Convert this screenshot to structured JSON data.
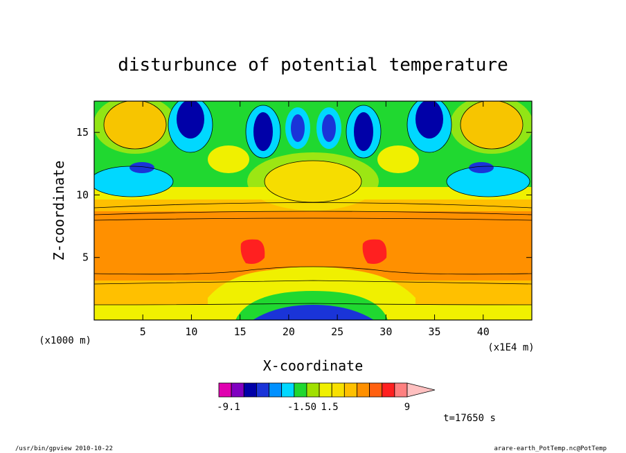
{
  "chart_data": {
    "type": "heatmap",
    "title": "disturbunce of potential temperature",
    "xlabel": "X-coordinate",
    "ylabel": "Z-coordinate",
    "x_unit_label": "(x1E4 m)",
    "y_unit_label": "(x1000 m)",
    "xlim": [
      0,
      45
    ],
    "ylim": [
      0,
      17.5
    ],
    "x_ticks": [
      5,
      10,
      15,
      20,
      25,
      30,
      35,
      40
    ],
    "y_ticks": [
      5,
      10,
      15
    ],
    "x_tick_labels": [
      "5",
      "10",
      "15",
      "20",
      "25",
      "30",
      "35",
      "40"
    ],
    "y_tick_labels": [
      "5",
      "10",
      "15"
    ],
    "colorbar": {
      "colors": [
        "#e000b0",
        "#8000c0",
        "#0000a8",
        "#1a34d8",
        "#0090ff",
        "#00d8ff",
        "#20d830",
        "#a0e000",
        "#f0f000",
        "#f8e000",
        "#ffc000",
        "#ff9000",
        "#ff6010",
        "#ff2020",
        "#ff8080"
      ],
      "extend_color": "#ffc0c0",
      "tick_labels": [
        "-9.1",
        "-1.50",
        "1.5",
        "9"
      ]
    },
    "time_label": "t=17650 s",
    "footer_left": "/usr/bin/gpview  2010-10-22",
    "footer_right": "arare-earth_PotTemp.nc@PotTemp"
  }
}
